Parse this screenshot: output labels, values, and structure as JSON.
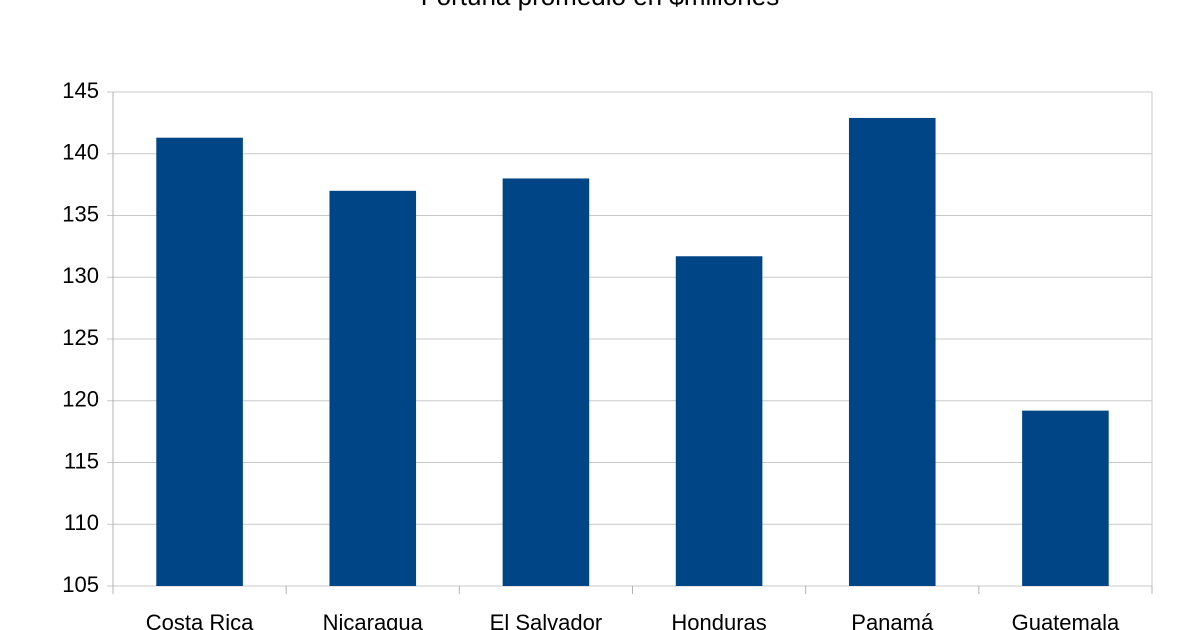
{
  "chart_data": {
    "type": "bar",
    "title": "Fortuna promedio en $millones",
    "categories": [
      "Costa Rica",
      "Nicaragua",
      "El Salvador",
      "Honduras",
      "Panamá",
      "Guatemala"
    ],
    "values": [
      141.3,
      137.0,
      138.0,
      131.7,
      142.9,
      119.2
    ],
    "color": "#004586",
    "ylim": [
      105,
      145
    ],
    "yticks": [
      105,
      110,
      115,
      120,
      125,
      130,
      135,
      140,
      145
    ],
    "grid": true
  }
}
